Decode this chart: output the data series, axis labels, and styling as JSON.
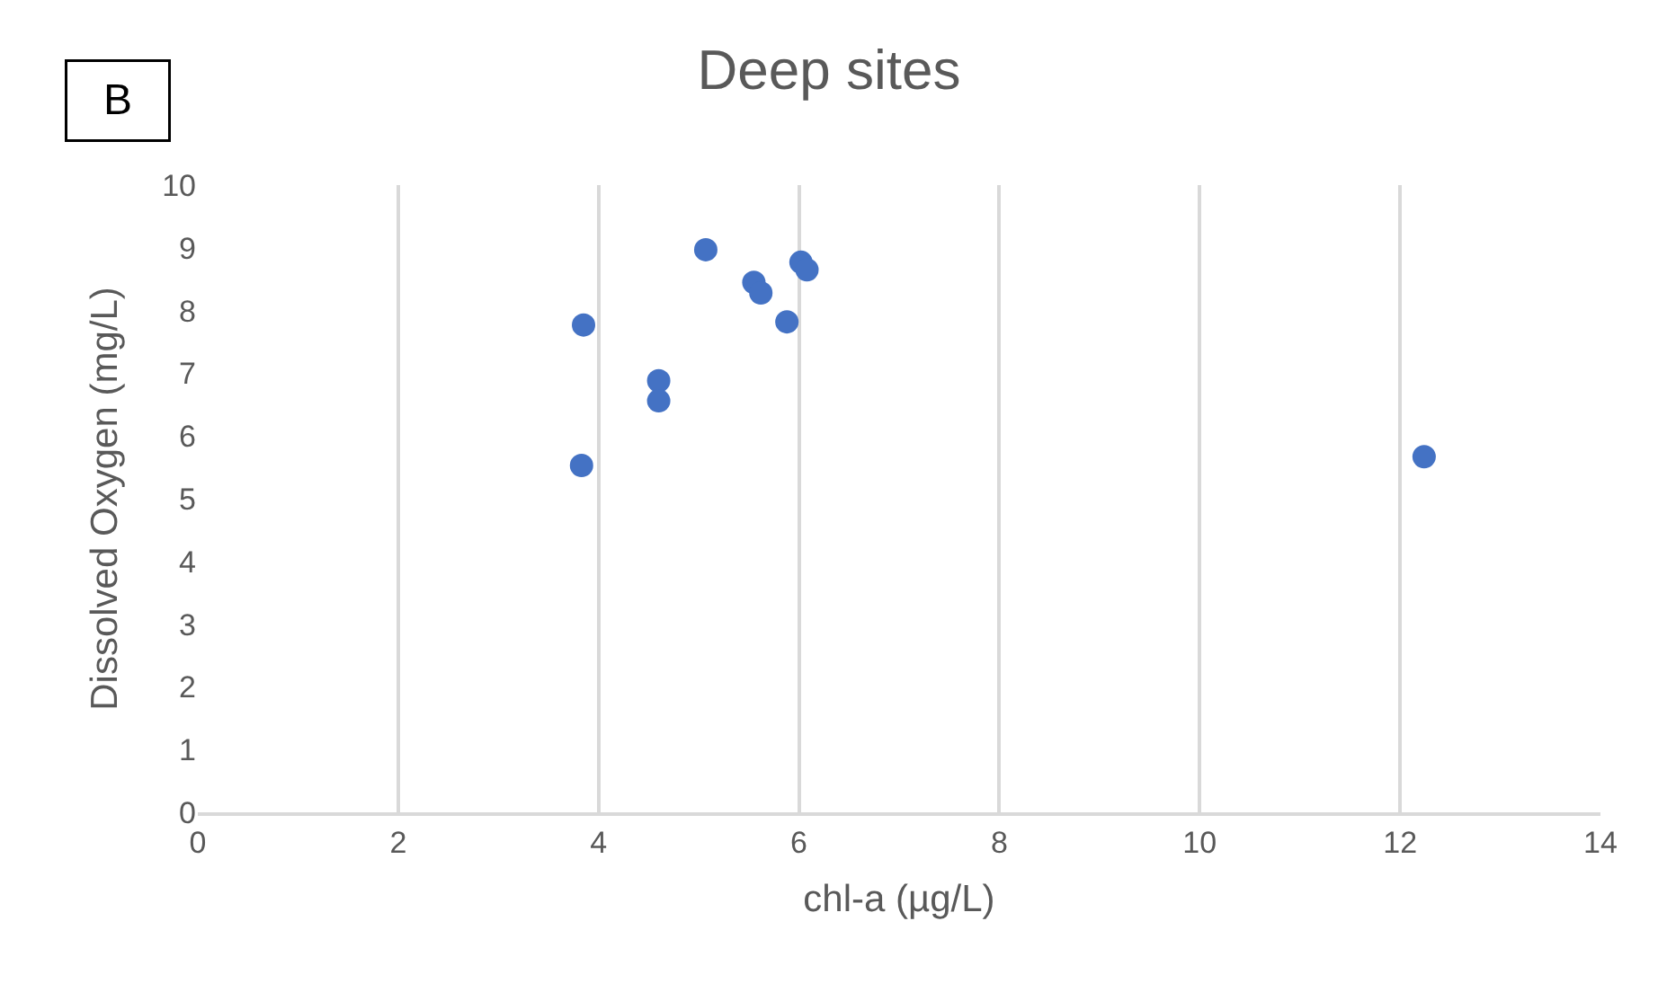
{
  "chart_data": {
    "type": "scatter",
    "title": "Deep sites",
    "xlabel": "chl-a (µg/L)",
    "ylabel": "Dissolved Oxygen (mg/L)",
    "annotations": [
      "B"
    ],
    "series": [
      {
        "color": "#4472c4",
        "x": [
          3.85,
          3.83,
          4.6,
          4.6,
          5.07,
          5.55,
          5.62,
          5.88,
          6.02,
          6.08,
          12.24
        ],
        "values": [
          7.77,
          5.53,
          6.88,
          6.56,
          8.97,
          8.45,
          8.28,
          7.82,
          8.77,
          8.65,
          5.67
        ]
      }
    ],
    "xlim": [
      0,
      14
    ],
    "xticks": [
      0,
      2,
      4,
      6,
      8,
      10,
      12,
      14
    ],
    "ylim": [
      0,
      10
    ],
    "yticks": [
      0,
      1,
      2,
      3,
      4,
      5,
      6,
      7,
      8,
      9,
      10
    ],
    "grid": "x",
    "marker": "circle"
  }
}
